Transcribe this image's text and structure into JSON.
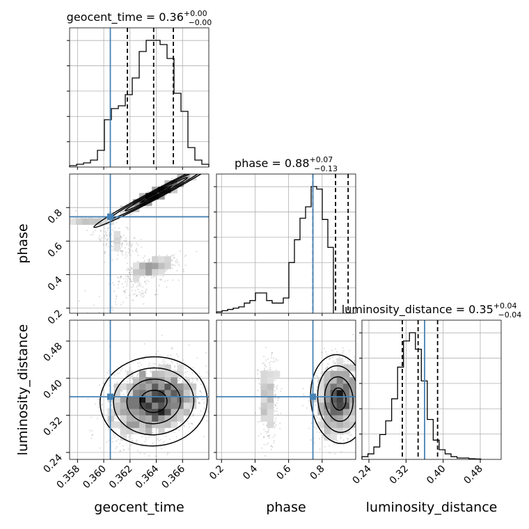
{
  "chart_data": {
    "type": "corner",
    "truth_color": "#4682b4",
    "hist_color": "#000000",
    "parameters": [
      {
        "name": "geocent_time",
        "label": "geocent_time",
        "range": [
          0.3574,
          0.368
        ],
        "ticks": [
          "0.358",
          "0.360",
          "0.362",
          "0.364",
          "0.366"
        ],
        "tick_values": [
          0.358,
          0.36,
          0.362,
          0.364,
          0.366
        ],
        "truth": 0.3605,
        "title_value": "0.36",
        "title_plus": "+0.00",
        "title_minus": "−0.00",
        "quantiles": [
          0.3618,
          0.3638,
          0.3653
        ],
        "hist_edges_start": 0.3574,
        "hist_bin_width": 0.00053,
        "hist_counts": [
          1,
          2,
          3,
          5,
          12,
          34,
          42,
          44,
          52,
          64,
          83,
          91,
          91,
          88,
          78,
          53,
          40,
          14,
          5,
          2
        ]
      },
      {
        "name": "phase",
        "label": "phase",
        "range": [
          0.17,
          1.0
        ],
        "ticks": [
          "0.2",
          "0.4",
          "0.6",
          "0.8"
        ],
        "tick_values": [
          0.2,
          0.4,
          0.6,
          0.8
        ],
        "truth": 0.745,
        "title_value": "0.88",
        "title_plus": "+0.07",
        "title_minus": "−0.13",
        "quantiles": [
          0.745,
          0.88,
          0.955
        ],
        "hist_edges_start": 0.17,
        "hist_bin_width": 0.0332,
        "hist_counts": [
          1,
          2,
          3,
          4,
          5,
          8,
          10,
          16,
          16,
          10,
          8,
          8,
          12,
          40,
          58,
          75,
          84,
          100,
          98,
          74,
          52
        ]
      },
      {
        "name": "luminosity_distance",
        "label": "luminosity_distance",
        "range": [
          0.225,
          0.525
        ],
        "ticks": [
          "0.24",
          "0.32",
          "0.40",
          "0.48"
        ],
        "tick_values": [
          0.24,
          0.32,
          0.4,
          0.48
        ],
        "truth": 0.36,
        "title_value": "0.35",
        "title_plus": "+0.04",
        "title_minus": "−0.04",
        "quantiles": [
          0.312,
          0.346,
          0.388
        ],
        "hist_edges_start": 0.225,
        "hist_bin_width": 0.0128,
        "hist_counts": [
          2,
          4,
          9,
          18,
          28,
          44,
          67,
          86,
          92,
          80,
          57,
          29,
          14,
          7,
          4,
          2,
          1,
          1,
          0.5,
          0.3
        ]
      }
    ],
    "pairs": [
      {
        "x": "geocent_time",
        "y": "phase",
        "clouds": [
          {
            "cx": 0.359,
            "cy": 0.725,
            "sx": 0.001,
            "sy": 0.008,
            "rho": 0.5,
            "n": 120
          },
          {
            "cx": 0.361,
            "cy": 0.6,
            "sx": 0.0009,
            "sy": 0.06,
            "rho": -0.6,
            "n": 170
          },
          {
            "cx": 0.3636,
            "cy": 0.44,
            "sx": 0.0011,
            "sy": 0.035,
            "rho": 0.7,
            "n": 350
          },
          {
            "cx": 0.3625,
            "cy": 0.33,
            "sx": 0.0015,
            "sy": 0.07,
            "rho": 0.5,
            "n": 120
          },
          {
            "cx": 0.364,
            "cy": 0.88,
            "sx": 0.0014,
            "sy": 0.06,
            "rho": 0.97,
            "n": 900
          }
        ]
      },
      {
        "x": "geocent_time",
        "y": "luminosity_distance",
        "clouds": [
          {
            "cx": 0.3638,
            "cy": 0.35,
            "sx": 0.0017,
            "sy": 0.04,
            "rho": 0.25,
            "n": 1800
          }
        ]
      },
      {
        "x": "phase",
        "y": "luminosity_distance",
        "clouds": [
          {
            "cx": 0.48,
            "cy": 0.355,
            "sx": 0.03,
            "sy": 0.045,
            "rho": 0.0,
            "n": 300
          },
          {
            "cx": 0.9,
            "cy": 0.355,
            "sx": 0.07,
            "sy": 0.04,
            "rho": 0.2,
            "n": 1500
          }
        ]
      }
    ]
  }
}
